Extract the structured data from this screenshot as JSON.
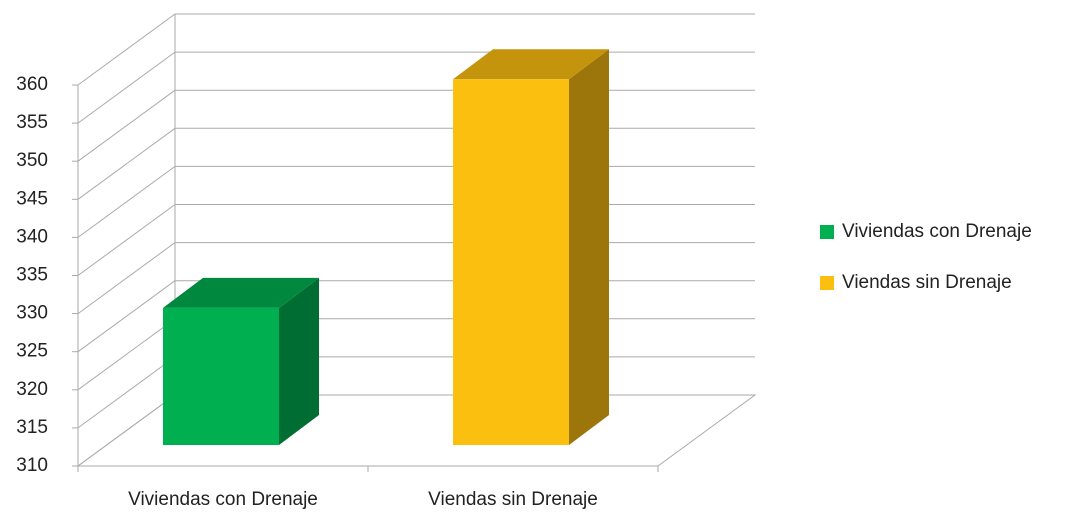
{
  "chart_data": {
    "type": "bar3d",
    "categories": [
      "Viviendas con Drenaje",
      "Viendas sin Drenaje"
    ],
    "series": [
      {
        "name": "Viviendas con Drenaje",
        "color": "#00b050",
        "values": [
          328,
          null
        ]
      },
      {
        "name": "Viendas sin Drenaje",
        "color": "#fbbf10",
        "values": [
          null,
          358
        ]
      }
    ],
    "ylim": [
      310,
      360
    ],
    "yticks": [
      310,
      315,
      320,
      325,
      330,
      335,
      340,
      345,
      350,
      355,
      360
    ],
    "grid": true,
    "legend": "right"
  }
}
